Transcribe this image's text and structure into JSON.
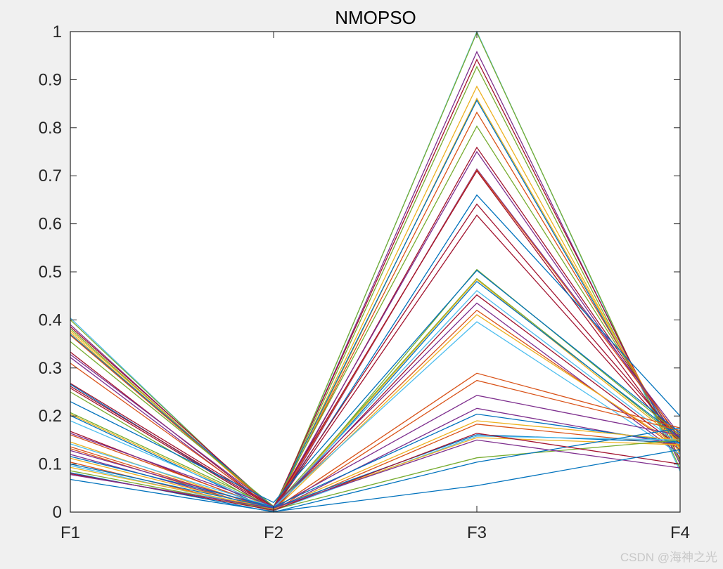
{
  "watermark": "CSDN @海神之光",
  "chart_data": {
    "type": "line",
    "subtype": "parallel-coordinates",
    "title": "NMOPSO",
    "xlabel": "",
    "ylabel": "",
    "categories": [
      "F1",
      "F2",
      "F3",
      "F4"
    ],
    "ylim": [
      0,
      1
    ],
    "yticks": [
      0,
      0.1,
      0.2,
      0.3,
      0.4,
      0.5,
      0.6,
      0.7,
      0.8,
      0.9,
      1
    ],
    "ytick_labels": [
      "0",
      "0.1",
      "0.2",
      "0.3",
      "0.4",
      "0.5",
      "0.6",
      "0.7",
      "0.8",
      "0.9",
      "1"
    ],
    "grid": false,
    "legend": null,
    "colors": [
      "#0072BD",
      "#D95319",
      "#EDB120",
      "#7E2F8E",
      "#77AC30",
      "#4DBEEE",
      "#A2142F"
    ],
    "series": [
      {
        "values": [
          0.404,
          0.0,
          1.0,
          0.085
        ],
        "color": "#4DBEEE"
      },
      {
        "values": [
          0.4,
          0.002,
          0.998,
          0.09
        ],
        "color": "#77AC30"
      },
      {
        "values": [
          0.39,
          0.005,
          0.958,
          0.1
        ],
        "color": "#7E2F8E"
      },
      {
        "values": [
          0.386,
          0.008,
          0.942,
          0.11
        ],
        "color": "#A2142F"
      },
      {
        "values": [
          0.382,
          0.004,
          0.927,
          0.105
        ],
        "color": "#77AC30"
      },
      {
        "values": [
          0.378,
          0.006,
          0.886,
          0.12
        ],
        "color": "#EDB120"
      },
      {
        "values": [
          0.374,
          0.003,
          0.861,
          0.13
        ],
        "color": "#EDB120"
      },
      {
        "values": [
          0.37,
          0.01,
          0.857,
          0.125
        ],
        "color": "#0072BD"
      },
      {
        "values": [
          0.368,
          0.007,
          0.832,
          0.135
        ],
        "color": "#D95319"
      },
      {
        "values": [
          0.355,
          0.012,
          0.803,
          0.14
        ],
        "color": "#77AC30"
      },
      {
        "values": [
          0.333,
          0.004,
          0.759,
          0.15
        ],
        "color": "#A2142F"
      },
      {
        "values": [
          0.328,
          0.009,
          0.75,
          0.145
        ],
        "color": "#7E2F8E"
      },
      {
        "values": [
          0.322,
          0.002,
          0.714,
          0.16
        ],
        "color": "#7E2F8E"
      },
      {
        "values": [
          0.31,
          0.006,
          0.712,
          0.155
        ],
        "color": "#D95319"
      },
      {
        "values": [
          0.268,
          0.011,
          0.71,
          0.14
        ],
        "color": "#A2142F"
      },
      {
        "values": [
          0.266,
          0.003,
          0.66,
          0.2
        ],
        "color": "#0072BD"
      },
      {
        "values": [
          0.262,
          0.008,
          0.641,
          0.15
        ],
        "color": "#A2142F"
      },
      {
        "values": [
          0.258,
          0.005,
          0.618,
          0.145
        ],
        "color": "#A2142F"
      },
      {
        "values": [
          0.25,
          0.001,
          0.505,
          0.16
        ],
        "color": "#77AC30"
      },
      {
        "values": [
          0.23,
          0.02,
          0.503,
          0.165
        ],
        "color": "#0072BD"
      },
      {
        "values": [
          0.207,
          0.01,
          0.486,
          0.15
        ],
        "color": "#77AC30"
      },
      {
        "values": [
          0.204,
          0.006,
          0.484,
          0.145
        ],
        "color": "#EDB120"
      },
      {
        "values": [
          0.201,
          0.002,
          0.48,
          0.155
        ],
        "color": "#0072BD"
      },
      {
        "values": [
          0.19,
          0.009,
          0.461,
          0.14
        ],
        "color": "#4DBEEE"
      },
      {
        "values": [
          0.168,
          0.004,
          0.452,
          0.135
        ],
        "color": "#A2142F"
      },
      {
        "values": [
          0.164,
          0.012,
          0.435,
          0.12
        ],
        "color": "#7E2F8E"
      },
      {
        "values": [
          0.161,
          0.007,
          0.42,
          0.13
        ],
        "color": "#D95319"
      },
      {
        "values": [
          0.146,
          0.003,
          0.411,
          0.135
        ],
        "color": "#EDB120"
      },
      {
        "values": [
          0.142,
          0.01,
          0.396,
          0.12
        ],
        "color": "#4DBEEE"
      },
      {
        "values": [
          0.136,
          0.005,
          0.289,
          0.175
        ],
        "color": "#D95319"
      },
      {
        "values": [
          0.132,
          0.001,
          0.274,
          0.17
        ],
        "color": "#D95319"
      },
      {
        "values": [
          0.128,
          0.008,
          0.243,
          0.16
        ],
        "color": "#7E2F8E"
      },
      {
        "values": [
          0.12,
          0.004,
          0.216,
          0.14
        ],
        "color": "#7E2F8E"
      },
      {
        "values": [
          0.116,
          0.011,
          0.204,
          0.145
        ],
        "color": "#0072BD"
      },
      {
        "values": [
          0.112,
          0.006,
          0.19,
          0.15
        ],
        "color": "#EDB120"
      },
      {
        "values": [
          0.104,
          0.002,
          0.183,
          0.14
        ],
        "color": "#D95319"
      },
      {
        "values": [
          0.1,
          0.009,
          0.161,
          0.145
        ],
        "color": "#0072BD"
      },
      {
        "values": [
          0.097,
          0.003,
          0.158,
          0.15
        ],
        "color": "#4DBEEE"
      },
      {
        "values": [
          0.093,
          0.007,
          0.155,
          0.14
        ],
        "color": "#EDB120"
      },
      {
        "values": [
          0.086,
          0.005,
          0.113,
          0.15
        ],
        "color": "#77AC30"
      },
      {
        "values": [
          0.082,
          0.0,
          0.104,
          0.175
        ],
        "color": "#0072BD"
      },
      {
        "values": [
          0.08,
          0.004,
          0.164,
          0.1
        ],
        "color": "#A2142F"
      },
      {
        "values": [
          0.078,
          0.008,
          0.15,
          0.092
        ],
        "color": "#7E2F8E"
      },
      {
        "values": [
          0.068,
          0.001,
          0.055,
          0.13
        ],
        "color": "#0072BD"
      }
    ]
  }
}
